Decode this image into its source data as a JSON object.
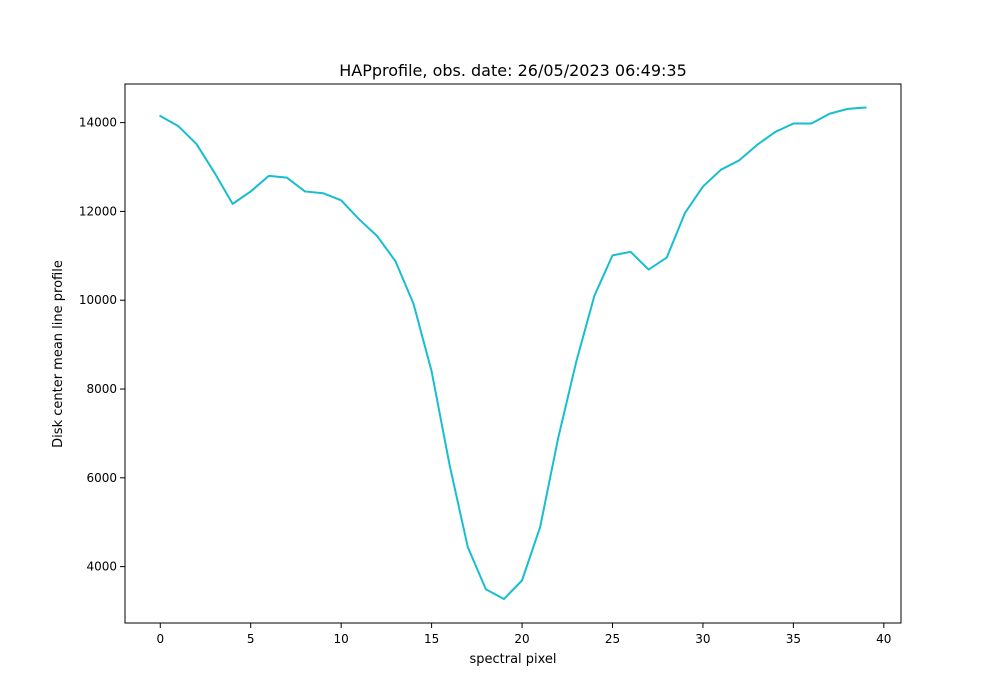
{
  "chart_data": {
    "type": "line",
    "title": "HAPprofile, obs. date: 26/05/2023 06:49:35",
    "xlabel": "spectral pixel",
    "ylabel": "Disk center mean line profile",
    "xlim": [
      -1.95,
      40.95
    ],
    "ylim": [
      2730,
      14870
    ],
    "xticks": [
      0,
      5,
      10,
      15,
      20,
      25,
      30,
      35,
      40
    ],
    "yticks": [
      4000,
      6000,
      8000,
      10000,
      12000,
      14000
    ],
    "grid": false,
    "series": [
      {
        "color": "#17becf",
        "x": [
          0,
          1,
          2,
          3,
          4,
          5,
          6,
          7,
          8,
          9,
          10,
          11,
          12,
          13,
          14,
          15,
          16,
          17,
          18,
          19,
          20,
          21,
          22,
          23,
          24,
          25,
          26,
          27,
          28,
          29,
          30,
          31,
          32,
          33,
          34,
          35,
          36,
          37,
          38,
          39
        ],
        "values": [
          14150,
          13920,
          13520,
          12870,
          12170,
          12450,
          12800,
          12760,
          12450,
          12410,
          12250,
          11820,
          11440,
          10880,
          9920,
          8400,
          6280,
          4440,
          3490,
          3270,
          3690,
          4890,
          6900,
          8620,
          10100,
          11010,
          11090,
          10690,
          10960,
          11960,
          12560,
          12940,
          13150,
          13500,
          13790,
          13980,
          13980,
          14200,
          14310,
          14340
        ]
      }
    ]
  }
}
